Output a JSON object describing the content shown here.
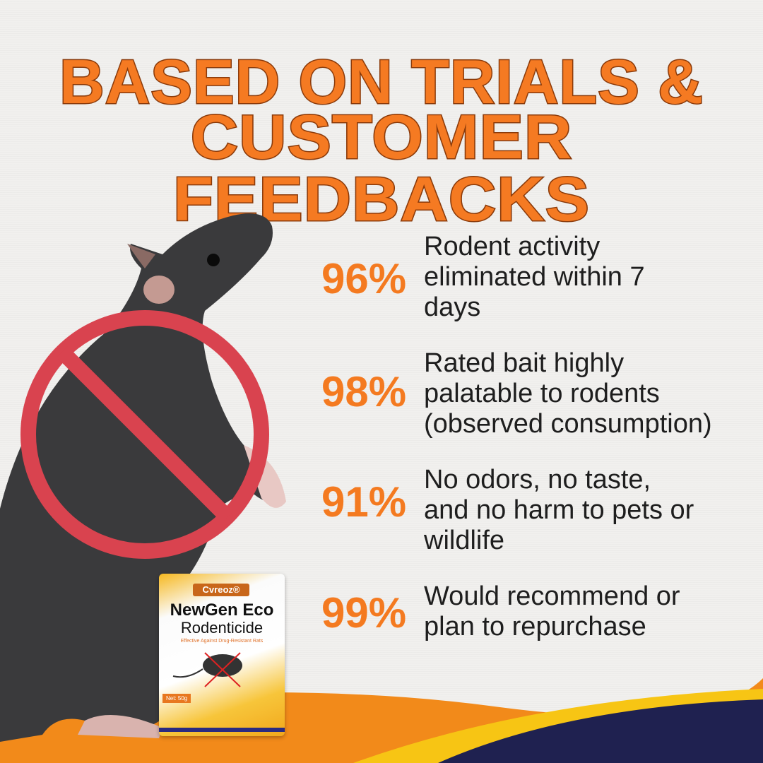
{
  "headline": {
    "line1": "BASED ON TRIALS &",
    "line2": "CUSTOMER FEEDBACKS"
  },
  "stats": [
    {
      "percent": "96%",
      "lines": [
        "Rodent activity",
        "eliminated within 7",
        "days"
      ]
    },
    {
      "percent": "98%",
      "lines": [
        "Rated bait highly",
        "palatable to rodents",
        "(observed consumption)"
      ]
    },
    {
      "percent": "91%",
      "lines": [
        "No odors, no taste,",
        "and no harm to pets or",
        "wildlife"
      ]
    },
    {
      "percent": "99%",
      "lines": [
        "Would recommend or",
        "plan to repurchase"
      ]
    }
  ],
  "product": {
    "brand": "Cvreoz®",
    "name_line1": "NewGen Eco",
    "name_line2": "Rodenticide",
    "tagline": "Effective Against Drug-Resistant Rats",
    "net": "Net: 50g"
  },
  "colors": {
    "accent": "#f47a20",
    "title_outline": "#8a3a0a",
    "prohibit_red": "#d9434f",
    "wave_yellow": "#f7c514",
    "wave_navy": "#1f2150"
  },
  "icons": [
    "rat-photo",
    "prohibition-sign-icon"
  ]
}
